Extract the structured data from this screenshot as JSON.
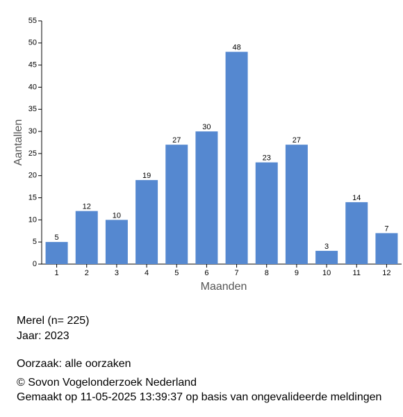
{
  "chart_data": {
    "type": "bar",
    "x_label": "Maanden",
    "y_label": "Aantallen",
    "categories": [
      "1",
      "2",
      "3",
      "4",
      "5",
      "6",
      "7",
      "8",
      "9",
      "10",
      "11",
      "12"
    ],
    "values": [
      5,
      12,
      10,
      19,
      27,
      30,
      48,
      23,
      27,
      3,
      14,
      7
    ],
    "color": "#5588d0",
    "ylim": [
      0,
      55
    ],
    "yticks": [
      0,
      5,
      10,
      15,
      20,
      25,
      30,
      35,
      40,
      45,
      50,
      55
    ]
  },
  "footer": {
    "species": "Merel  (n= 225)",
    "year": "Jaar: 2023",
    "cause": "Oorzaak: alle oorzaken",
    "copyright": "© Sovon Vogelonderzoek Nederland",
    "generated": "Gemaakt op 11-05-2025 13:39:37 op basis van ongevalideerde meldingen"
  }
}
